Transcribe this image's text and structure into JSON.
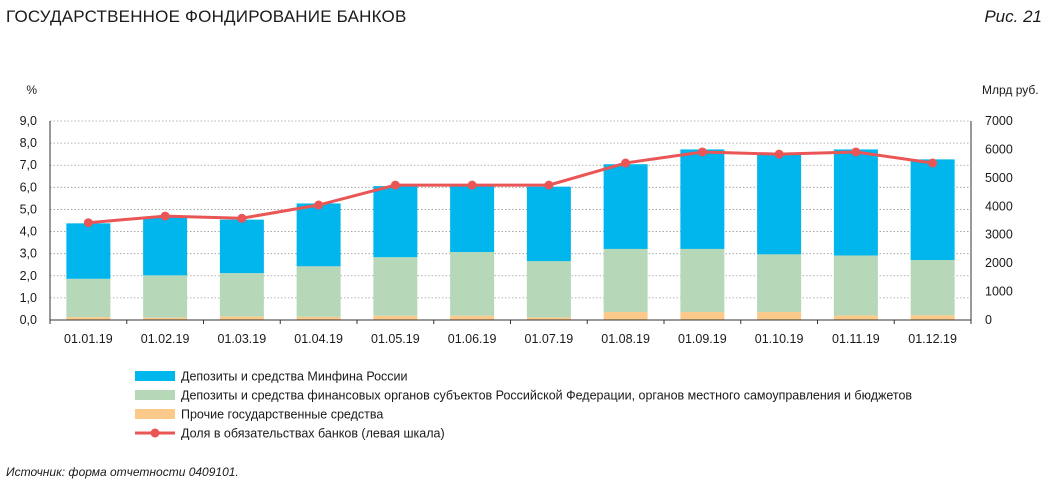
{
  "header": {
    "title": "ГОСУДАРСТВЕННОЕ ФОНДИРОВАНИЕ БАНКОВ",
    "figure_label": "Рис. 21"
  },
  "footer": {
    "source": "Источник: форма отчетности 0409101."
  },
  "chart_data": {
    "type": "bar",
    "stacked": true,
    "title": "ГОСУДАРСТВЕННОЕ ФОНДИРОВАНИЕ БАНКОВ",
    "categories": [
      "01.01.19",
      "01.02.19",
      "01.03.19",
      "01.04.19",
      "01.05.19",
      "01.06.19",
      "01.07.19",
      "01.08.19",
      "01.09.19",
      "01.10.19",
      "01.11.19",
      "01.12.19"
    ],
    "left_axis": {
      "label": "%",
      "ylim": [
        0,
        9
      ],
      "ticks": [
        "0,0",
        "1,0",
        "2,0",
        "3,0",
        "4,0",
        "5,0",
        "6,0",
        "7,0",
        "8,0",
        "9,0"
      ]
    },
    "right_axis": {
      "label": "Млрд руб.",
      "ylim": [
        0,
        7000
      ],
      "ticks": [
        "0",
        "1000",
        "2000",
        "3000",
        "4000",
        "5000",
        "6000",
        "7000"
      ]
    },
    "grid": "horizontal-dotted",
    "legend_position": "bottom",
    "series": [
      {
        "name": "Прочие государственные средства",
        "kind": "bar",
        "axis": "right",
        "color": "#fbc98a",
        "values": [
          100,
          80,
          120,
          110,
          150,
          150,
          90,
          280,
          280,
          280,
          160,
          170
        ]
      },
      {
        "name": "Депозиты и средства финансовых органов субъектов Российской Федерации, органов местного самоуправления и бюджетов",
        "kind": "bar",
        "axis": "right",
        "color": "#b7d7b9",
        "values": [
          1350,
          1490,
          1530,
          1780,
          2060,
          2240,
          1980,
          2220,
          2220,
          2030,
          2110,
          1940
        ]
      },
      {
        "name": "Депозиты и средства Минфина России",
        "kind": "bar",
        "axis": "right",
        "color": "#00b6ec",
        "values": [
          1950,
          2040,
          1880,
          2210,
          2500,
          2380,
          2620,
          2980,
          3500,
          3540,
          3730,
          3540
        ]
      },
      {
        "name": "Доля в обязательствах банков (левая шкала)",
        "kind": "line",
        "axis": "left",
        "color": "#ea5656",
        "values": [
          4.4,
          4.7,
          4.6,
          5.2,
          6.1,
          6.1,
          6.1,
          7.1,
          7.6,
          7.5,
          7.6,
          7.1
        ]
      }
    ]
  }
}
